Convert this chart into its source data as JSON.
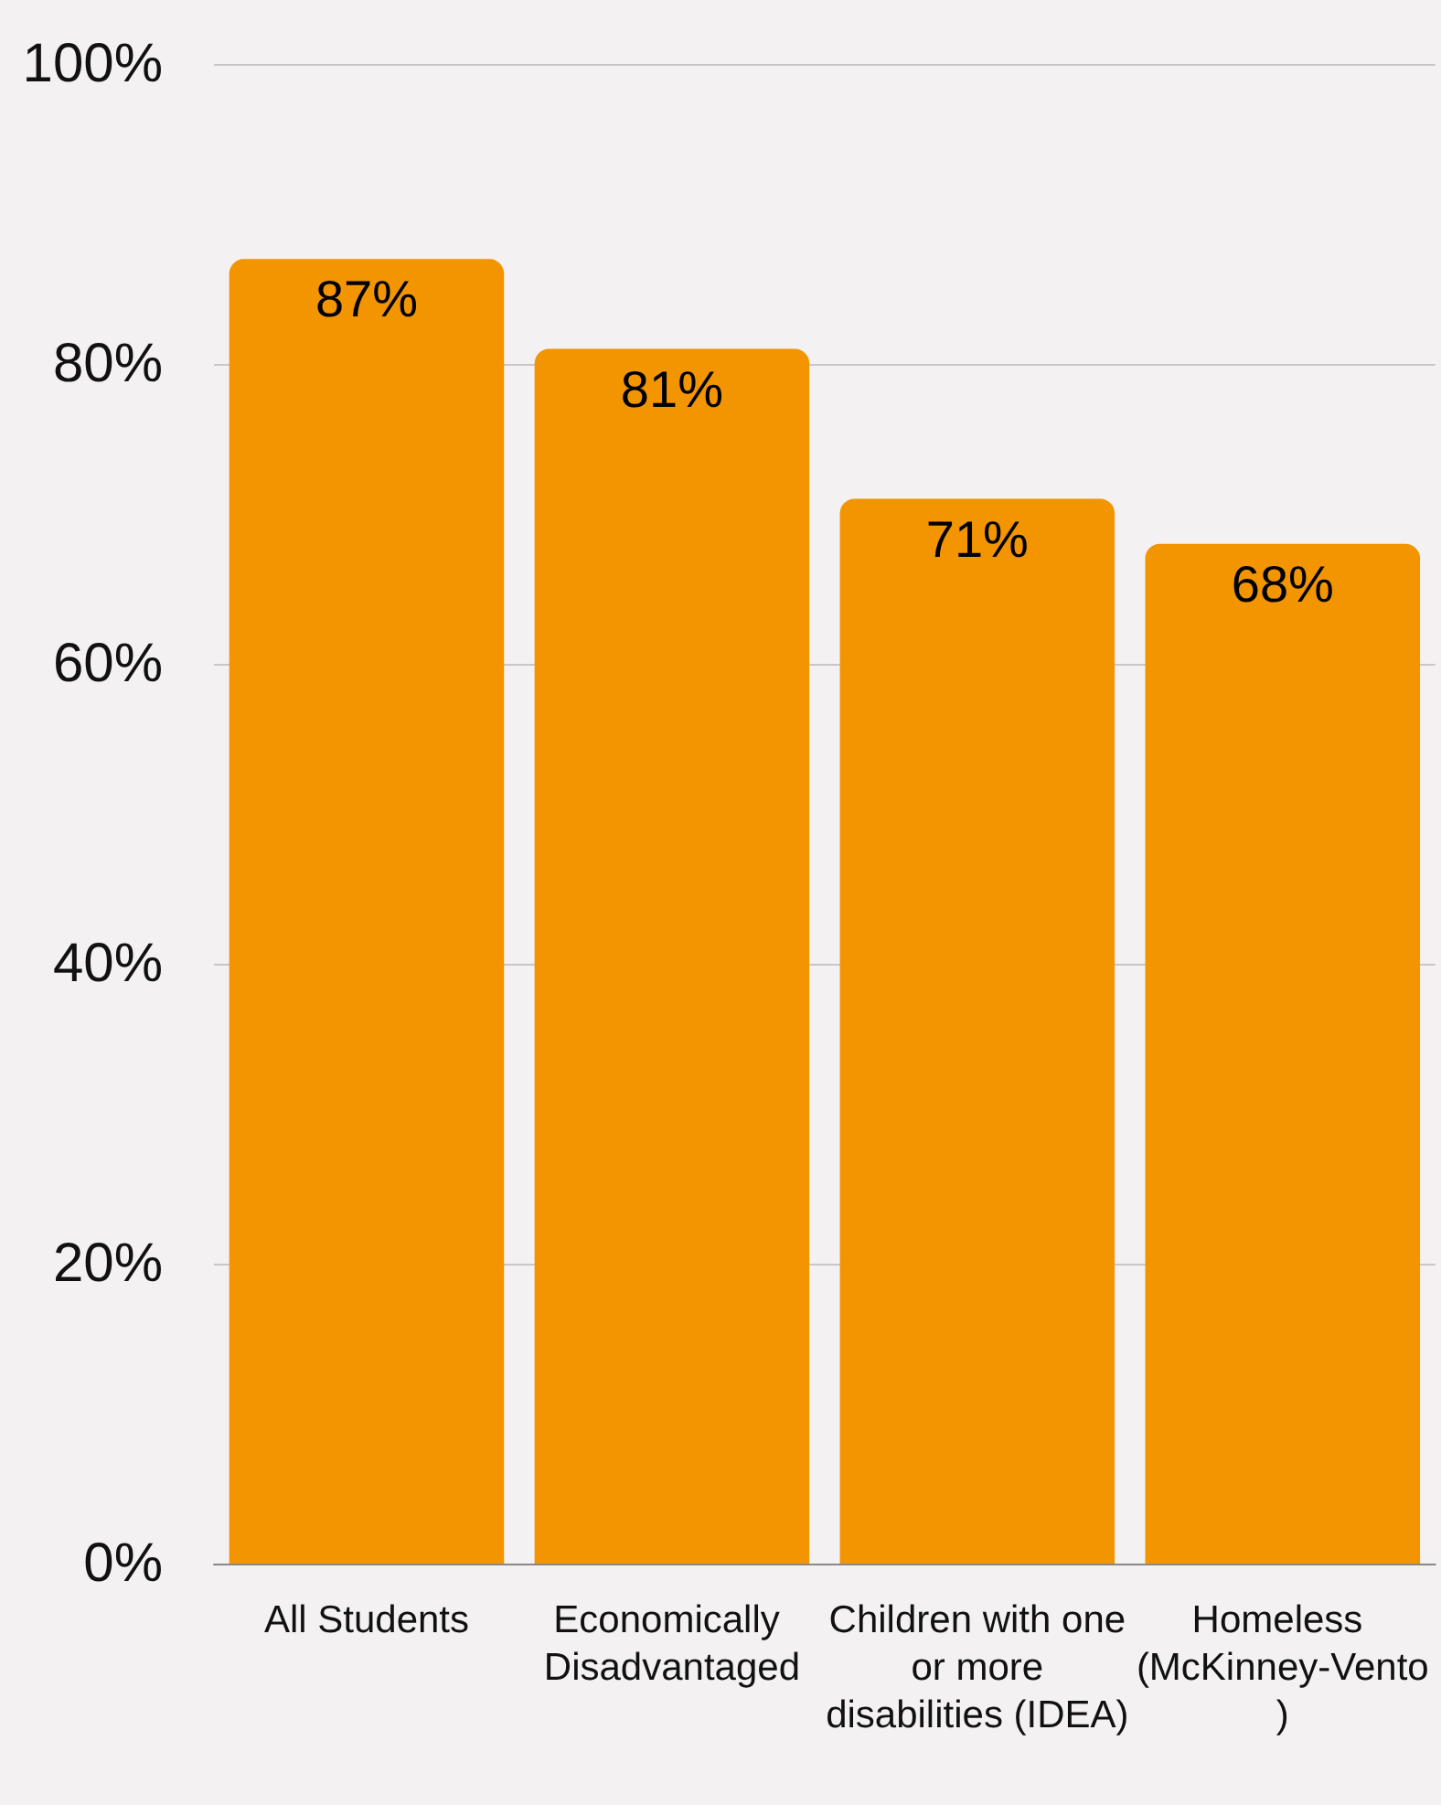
{
  "chart_data": {
    "type": "bar",
    "categories": [
      "All Students",
      "Economically Disadvantaged",
      "Children with one or more disabilities (IDEA)",
      "Homeless (McKinney-Vento)"
    ],
    "values": [
      87,
      81,
      71,
      68
    ],
    "value_labels": [
      "87%",
      "81%",
      "71%",
      "68%"
    ],
    "color": "#f29500",
    "ylim": [
      0,
      100
    ],
    "yticks": [
      {
        "value": 0,
        "label": "0%"
      },
      {
        "value": 20,
        "label": "20%"
      },
      {
        "value": 40,
        "label": "40%"
      },
      {
        "value": 60,
        "label": "60%"
      },
      {
        "value": 80,
        "label": "80%"
      },
      {
        "value": 100,
        "label": "100%"
      }
    ],
    "grid": "y"
  }
}
